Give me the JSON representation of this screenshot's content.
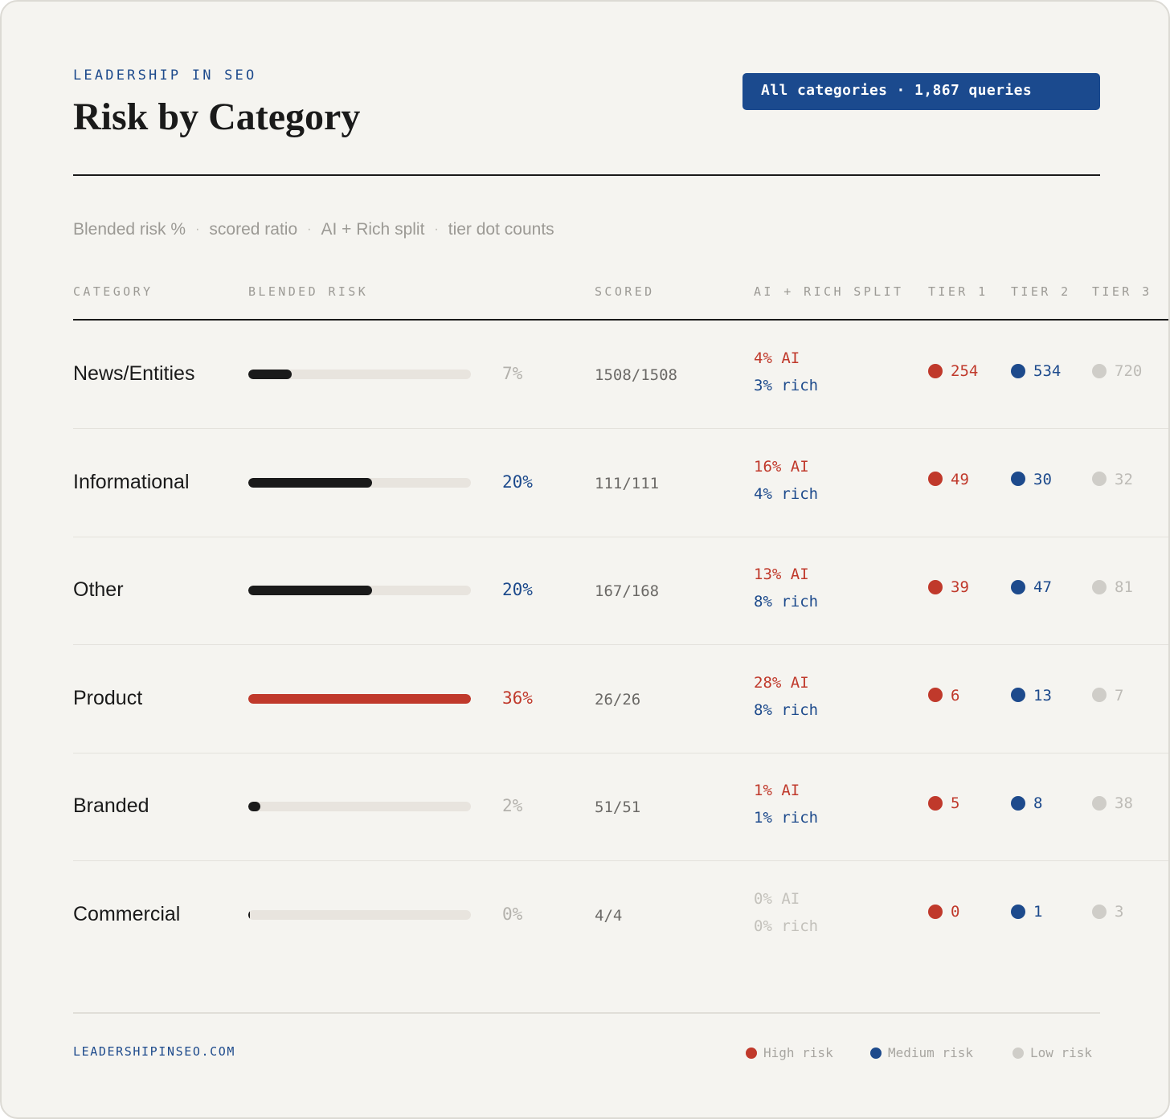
{
  "header": {
    "eyebrow": "LEADERSHIP IN SEO",
    "title": "Risk by Category",
    "badge": "All categories · 1,867 queries"
  },
  "subtitle": {
    "parts": [
      "Blended risk %",
      "scored ratio",
      "AI + Rich split",
      "tier dot counts"
    ],
    "separator": "·"
  },
  "columns": {
    "category": "CATEGORY",
    "blended_risk": "BLENDED RISK",
    "scored": "SCORED",
    "split": "AI + RICH SPLIT",
    "tier1": "TIER 1",
    "tier2": "TIER 2",
    "tier3": "TIER 3"
  },
  "colors": {
    "high": "#c0392b",
    "medium": "#1d4a8c",
    "low": "#cfcdc8",
    "bar_default": "#1a1a1a",
    "bar_high": "#c0392b",
    "track": "#e8e4de"
  },
  "rows": [
    {
      "category": "News/Entities",
      "risk": 7,
      "risk_label": "7%",
      "risk_style": "muted",
      "bar_style": "default",
      "scored": "1508/1508",
      "ai": "4% AI",
      "rich": "3% rich",
      "split_muted": false,
      "tier1": "254",
      "tier2": "534",
      "tier3": "720"
    },
    {
      "category": "Informational",
      "risk": 20,
      "risk_label": "20%",
      "risk_style": "medium",
      "bar_style": "default",
      "scored": "111/111",
      "ai": "16% AI",
      "rich": "4% rich",
      "split_muted": false,
      "tier1": "49",
      "tier2": "30",
      "tier3": "32"
    },
    {
      "category": "Other",
      "risk": 20,
      "risk_label": "20%",
      "risk_style": "medium",
      "bar_style": "default",
      "scored": "167/168",
      "ai": "13% AI",
      "rich": "8% rich",
      "split_muted": false,
      "tier1": "39",
      "tier2": "47",
      "tier3": "81"
    },
    {
      "category": "Product",
      "risk": 36,
      "risk_label": "36%",
      "risk_style": "high",
      "bar_style": "high",
      "scored": "26/26",
      "ai": "28% AI",
      "rich": "8% rich",
      "split_muted": false,
      "tier1": "6",
      "tier2": "13",
      "tier3": "7"
    },
    {
      "category": "Branded",
      "risk": 2,
      "risk_label": "2%",
      "risk_style": "muted",
      "bar_style": "default",
      "scored": "51/51",
      "ai": "1% AI",
      "rich": "1% rich",
      "split_muted": false,
      "tier1": "5",
      "tier2": "8",
      "tier3": "38"
    },
    {
      "category": "Commercial",
      "risk": 0,
      "risk_label": "0%",
      "risk_style": "muted",
      "bar_style": "default",
      "scored": "4/4",
      "ai": "0% AI",
      "rich": "0% rich",
      "split_muted": true,
      "tier1": "0",
      "tier2": "1",
      "tier3": "3"
    }
  ],
  "bar_max_risk": 36,
  "footer": {
    "url": "LEADERSHIPINSEO.COM",
    "legend": [
      {
        "label": "High risk",
        "color": "#c0392b"
      },
      {
        "label": "Medium risk",
        "color": "#1d4a8c"
      },
      {
        "label": "Low risk",
        "color": "#cfcdc8"
      }
    ]
  }
}
